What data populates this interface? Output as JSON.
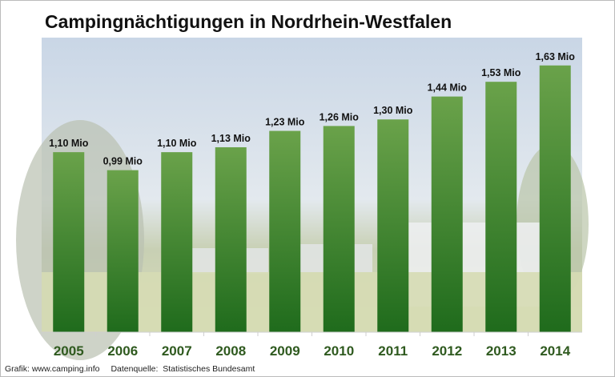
{
  "chart_data": {
    "type": "bar",
    "title": "Campingnächtigungen in Nordrhein-Westfalen",
    "categories": [
      "2005",
      "2006",
      "2007",
      "2008",
      "2009",
      "2010",
      "2011",
      "2012",
      "2013",
      "2014"
    ],
    "values": [
      1.1,
      0.99,
      1.1,
      1.13,
      1.23,
      1.26,
      1.3,
      1.44,
      1.53,
      1.63
    ],
    "data_labels": [
      "1,10 Mio",
      "0,99 Mio",
      "1,10 Mio",
      "1,13 Mio",
      "1,23 Mio",
      "1,26 Mio",
      "1,30 Mio",
      "1,44 Mio",
      "1,53 Mio",
      "1,63 Mio"
    ],
    "unit": "Mio",
    "xlabel": "",
    "ylabel": "",
    "ylim": [
      0,
      1.8
    ],
    "grid": false,
    "legend": "none",
    "colors": {
      "bar_top": "#6aa24a",
      "bar_bottom": "#1f6b1c",
      "tick_label": "#2f5a1f"
    },
    "background": "photo of campsite (sky, trees, caravans, grass)"
  },
  "footer": {
    "credit": "Grafik: www.camping.info",
    "source": "Datenquelle:  Statistisches Bundesamt"
  }
}
